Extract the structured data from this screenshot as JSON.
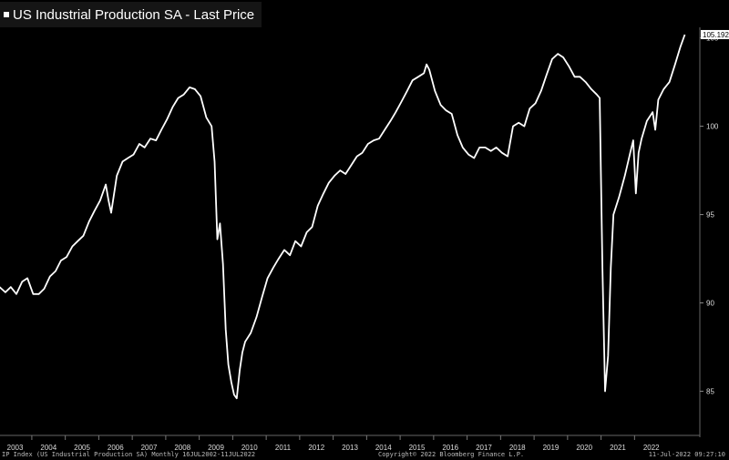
{
  "header": {
    "title": "US Industrial Production SA - Last Price"
  },
  "footer": {
    "left": "IP Index (US Industrial Production SA)  Monthly 16JUL2002-11JUL2022",
    "center": "Copyright© 2022 Bloomberg Finance L.P.",
    "right": "11-Jul-2022 09:27:10"
  },
  "chart_data": {
    "type": "line",
    "title": "US Industrial Production SA - Last Price",
    "series": [
      {
        "name": "",
        "color": "#ffffff"
      }
    ],
    "last_value_label": "105.1924",
    "xlim": [
      2002.55,
      2022.45
    ],
    "ylim": [
      82.5,
      105.6
    ],
    "y_ticks": [
      85,
      90,
      95,
      100,
      105
    ],
    "x_tick_labels": [
      "2003",
      "2004",
      "2005",
      "2006",
      "2007",
      "2008",
      "2009",
      "2010",
      "2011",
      "2012",
      "2013",
      "2014",
      "2015",
      "2016",
      "2017",
      "2018",
      "2019",
      "2020",
      "2021",
      "2022"
    ],
    "grid": false,
    "points": [
      [
        2002.54,
        90.9
      ],
      [
        2002.71,
        90.6
      ],
      [
        2002.87,
        90.9
      ],
      [
        2003.04,
        90.5
      ],
      [
        2003.21,
        91.2
      ],
      [
        2003.37,
        91.4
      ],
      [
        2003.54,
        90.5
      ],
      [
        2003.71,
        90.5
      ],
      [
        2003.87,
        90.8
      ],
      [
        2004.04,
        91.5
      ],
      [
        2004.21,
        91.8
      ],
      [
        2004.37,
        92.4
      ],
      [
        2004.54,
        92.6
      ],
      [
        2004.71,
        93.2
      ],
      [
        2004.87,
        93.5
      ],
      [
        2005.04,
        93.8
      ],
      [
        2005.21,
        94.6
      ],
      [
        2005.37,
        95.2
      ],
      [
        2005.54,
        95.8
      ],
      [
        2005.71,
        96.7
      ],
      [
        2005.79,
        95.8
      ],
      [
        2005.87,
        95.1
      ],
      [
        2006.04,
        97.2
      ],
      [
        2006.21,
        98.0
      ],
      [
        2006.37,
        98.2
      ],
      [
        2006.54,
        98.4
      ],
      [
        2006.71,
        99.0
      ],
      [
        2006.87,
        98.8
      ],
      [
        2007.04,
        99.3
      ],
      [
        2007.21,
        99.2
      ],
      [
        2007.37,
        99.8
      ],
      [
        2007.54,
        100.4
      ],
      [
        2007.71,
        101.1
      ],
      [
        2007.87,
        101.6
      ],
      [
        2008.04,
        101.8
      ],
      [
        2008.21,
        102.2
      ],
      [
        2008.37,
        102.1
      ],
      [
        2008.54,
        101.7
      ],
      [
        2008.71,
        100.5
      ],
      [
        2008.87,
        100.0
      ],
      [
        2008.96,
        98.0
      ],
      [
        2009.04,
        93.6
      ],
      [
        2009.12,
        94.5
      ],
      [
        2009.21,
        92.2
      ],
      [
        2009.29,
        88.5
      ],
      [
        2009.37,
        86.5
      ],
      [
        2009.46,
        85.5
      ],
      [
        2009.54,
        84.8
      ],
      [
        2009.62,
        84.6
      ],
      [
        2009.71,
        86.2
      ],
      [
        2009.79,
        87.2
      ],
      [
        2009.87,
        87.8
      ],
      [
        2010.04,
        88.3
      ],
      [
        2010.21,
        89.2
      ],
      [
        2010.37,
        90.3
      ],
      [
        2010.54,
        91.4
      ],
      [
        2010.71,
        92.0
      ],
      [
        2010.87,
        92.5
      ],
      [
        2011.04,
        93.0
      ],
      [
        2011.21,
        92.7
      ],
      [
        2011.37,
        93.5
      ],
      [
        2011.54,
        93.2
      ],
      [
        2011.71,
        94.0
      ],
      [
        2011.87,
        94.3
      ],
      [
        2012.04,
        95.5
      ],
      [
        2012.21,
        96.2
      ],
      [
        2012.37,
        96.8
      ],
      [
        2012.54,
        97.2
      ],
      [
        2012.71,
        97.5
      ],
      [
        2012.87,
        97.3
      ],
      [
        2013.04,
        97.8
      ],
      [
        2013.21,
        98.3
      ],
      [
        2013.37,
        98.5
      ],
      [
        2013.54,
        99.0
      ],
      [
        2013.71,
        99.2
      ],
      [
        2013.87,
        99.3
      ],
      [
        2014.04,
        99.8
      ],
      [
        2014.21,
        100.3
      ],
      [
        2014.37,
        100.8
      ],
      [
        2014.54,
        101.4
      ],
      [
        2014.71,
        102.0
      ],
      [
        2014.87,
        102.6
      ],
      [
        2015.04,
        102.8
      ],
      [
        2015.21,
        103.0
      ],
      [
        2015.29,
        103.5
      ],
      [
        2015.37,
        103.2
      ],
      [
        2015.54,
        102.0
      ],
      [
        2015.71,
        101.2
      ],
      [
        2015.87,
        100.9
      ],
      [
        2016.04,
        100.7
      ],
      [
        2016.21,
        99.5
      ],
      [
        2016.37,
        98.8
      ],
      [
        2016.54,
        98.4
      ],
      [
        2016.71,
        98.2
      ],
      [
        2016.87,
        98.8
      ],
      [
        2017.04,
        98.8
      ],
      [
        2017.21,
        98.6
      ],
      [
        2017.37,
        98.8
      ],
      [
        2017.54,
        98.5
      ],
      [
        2017.71,
        98.3
      ],
      [
        2017.87,
        100.0
      ],
      [
        2018.04,
        100.2
      ],
      [
        2018.21,
        100.0
      ],
      [
        2018.37,
        101.0
      ],
      [
        2018.54,
        101.3
      ],
      [
        2018.71,
        102.0
      ],
      [
        2018.87,
        102.9
      ],
      [
        2019.04,
        103.8
      ],
      [
        2019.21,
        104.1
      ],
      [
        2019.37,
        103.9
      ],
      [
        2019.54,
        103.4
      ],
      [
        2019.71,
        102.8
      ],
      [
        2019.87,
        102.8
      ],
      [
        2020.04,
        102.5
      ],
      [
        2020.21,
        102.1
      ],
      [
        2020.37,
        101.8
      ],
      [
        2020.46,
        101.6
      ],
      [
        2020.54,
        92.0
      ],
      [
        2020.62,
        85.0
      ],
      [
        2020.71,
        87.0
      ],
      [
        2020.79,
        92.0
      ],
      [
        2020.87,
        95.0
      ],
      [
        2021.04,
        96.0
      ],
      [
        2021.21,
        97.2
      ],
      [
        2021.37,
        98.5
      ],
      [
        2021.46,
        99.2
      ],
      [
        2021.54,
        96.2
      ],
      [
        2021.62,
        98.5
      ],
      [
        2021.71,
        99.3
      ],
      [
        2021.87,
        100.3
      ],
      [
        2022.04,
        100.8
      ],
      [
        2022.12,
        99.8
      ],
      [
        2022.21,
        101.5
      ],
      [
        2022.37,
        102.1
      ],
      [
        2022.54,
        102.5
      ],
      [
        2022.71,
        103.5
      ],
      [
        2022.87,
        104.5
      ],
      [
        2023.0,
        105.19
      ]
    ]
  }
}
